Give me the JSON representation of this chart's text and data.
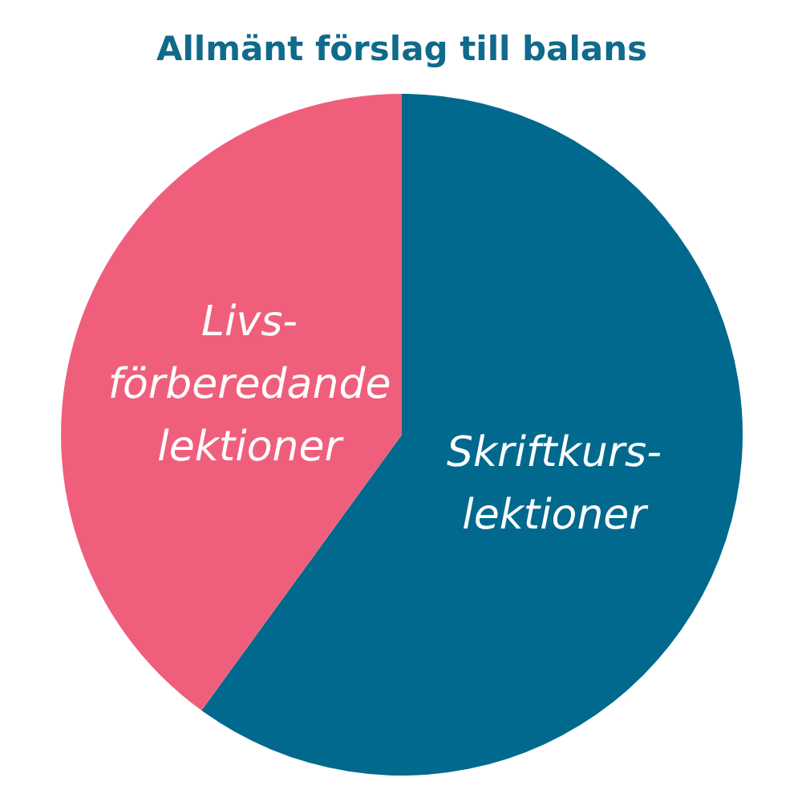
{
  "chart_data": {
    "type": "pie",
    "title": "Allmänt förslag till balans",
    "categories": [
      "Skriftkurs-\nlektioner",
      "Livs-\nförberedande\nlektioner"
    ],
    "values": [
      60,
      40
    ],
    "colors": [
      "#00698d",
      "#ef5f7c"
    ]
  }
}
